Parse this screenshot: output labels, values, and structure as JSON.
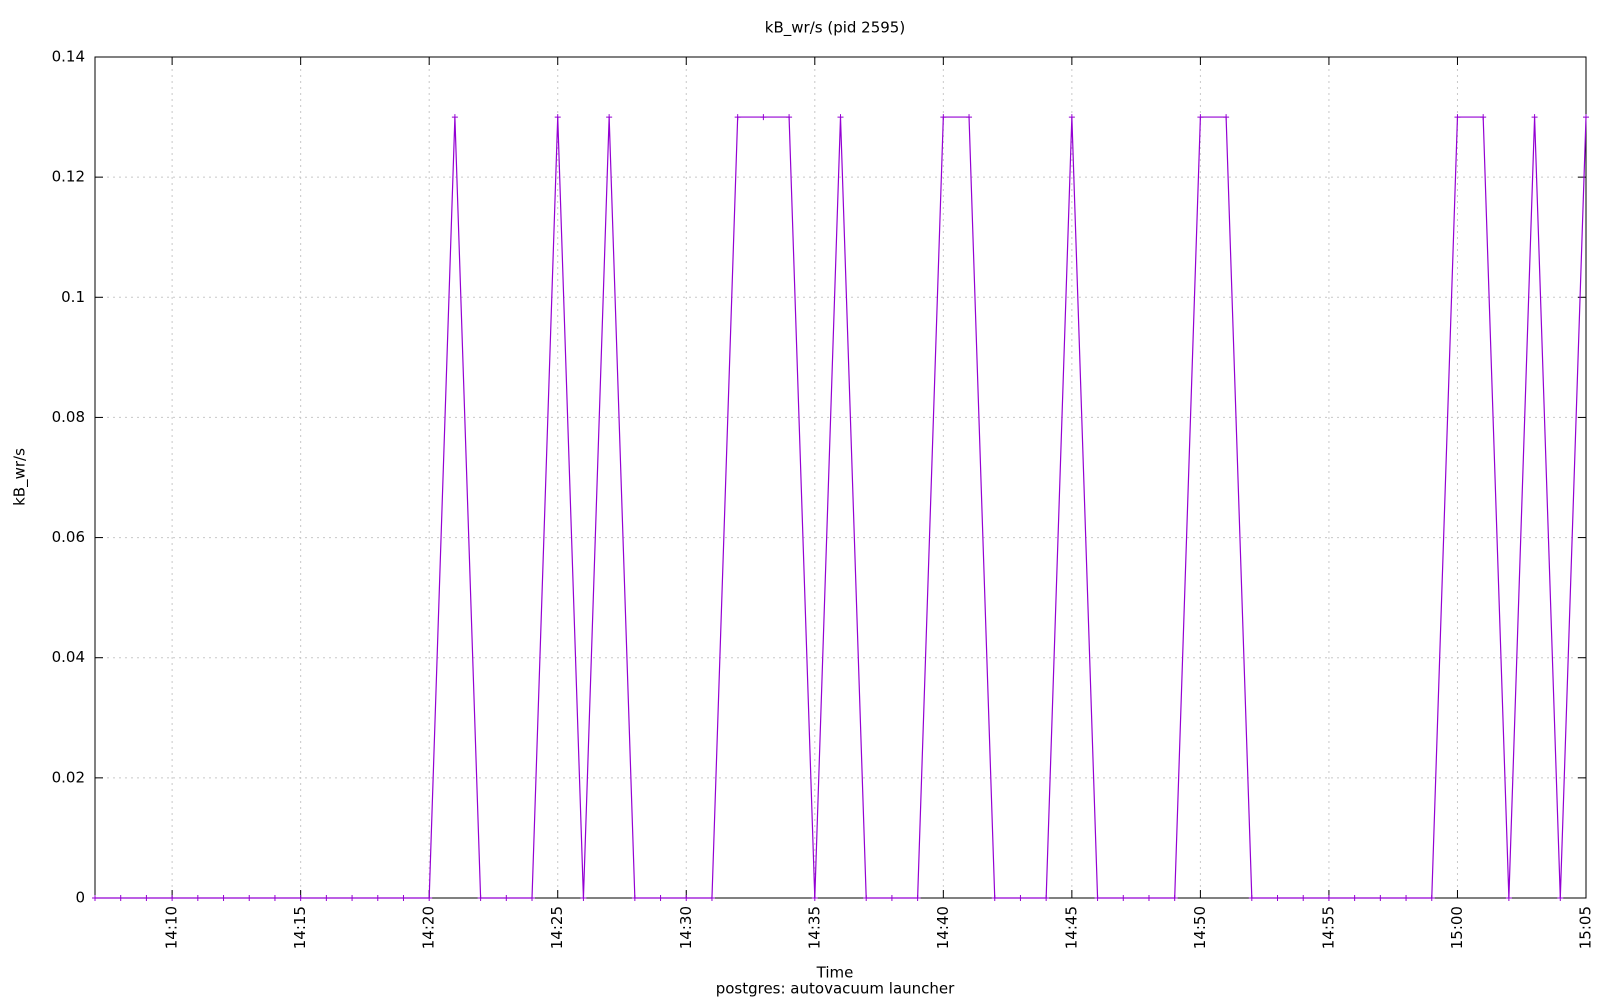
{
  "chart_data": {
    "type": "line",
    "title": "kB_wr/s (pid 2595)",
    "subtitle": "postgres: autovacuum launcher",
    "x_label": "Time",
    "y_label": "kB_wr/s",
    "color": "#9400d3",
    "grid": true,
    "x": [
      "14:07",
      "14:08",
      "14:09",
      "14:10",
      "14:11",
      "14:12",
      "14:13",
      "14:14",
      "14:15",
      "14:16",
      "14:17",
      "14:18",
      "14:19",
      "14:20",
      "14:21",
      "14:22",
      "14:23",
      "14:24",
      "14:25",
      "14:26",
      "14:27",
      "14:28",
      "14:29",
      "14:30",
      "14:31",
      "14:32",
      "14:33",
      "14:34",
      "14:35",
      "14:36",
      "14:37",
      "14:38",
      "14:39",
      "14:40",
      "14:41",
      "14:42",
      "14:43",
      "14:44",
      "14:45",
      "14:46",
      "14:47",
      "14:48",
      "14:49",
      "14:50",
      "14:51",
      "14:52",
      "14:53",
      "14:54",
      "14:55",
      "14:56",
      "14:57",
      "14:58",
      "14:59",
      "15:00",
      "15:01",
      "15:02",
      "15:03",
      "15:04",
      "15:05"
    ],
    "values": [
      0,
      0,
      0,
      0,
      0,
      0,
      0,
      0,
      0,
      0,
      0,
      0,
      0,
      0,
      0.13,
      0,
      0,
      0,
      0.13,
      0,
      0.13,
      0,
      0,
      0,
      0,
      0.13,
      0.13,
      0.13,
      0,
      0.13,
      0,
      0,
      0,
      0.13,
      0.13,
      0,
      0,
      0,
      0.13,
      0,
      0,
      0,
      0,
      0.13,
      0.13,
      0,
      0,
      0,
      0,
      0,
      0,
      0,
      0,
      0.13,
      0.13,
      0,
      0.13,
      0,
      0.13
    ],
    "xlim": [
      "14:07",
      "15:05"
    ],
    "xticks": [
      "14:10",
      "14:15",
      "14:20",
      "14:25",
      "14:30",
      "14:35",
      "14:40",
      "14:45",
      "14:50",
      "14:55",
      "15:00",
      "15:05"
    ],
    "ylim": [
      0,
      0.14
    ],
    "yticks": [
      0,
      0.02,
      0.04,
      0.06,
      0.08,
      0.1,
      0.12,
      0.14
    ]
  }
}
